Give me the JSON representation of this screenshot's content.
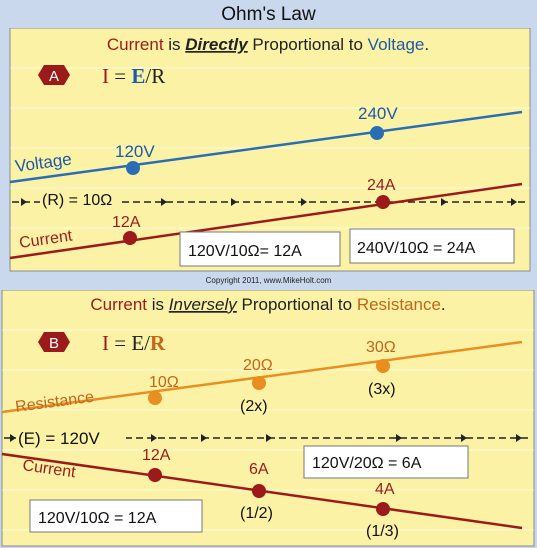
{
  "title": "Ohm's Law",
  "copyright": "Copyright 2011, www.MikeHolt.com",
  "colors": {
    "panel_bg": "#fbf2a6",
    "frame_bg": "#c9d8ec",
    "voltage_line": "#2a6db5",
    "voltage_text": "#1c5aa6",
    "current_line": "#9b1b1b",
    "current_text": "#9b1b1b",
    "resistance_line": "#e98e21",
    "resistance_text": "#c2661a",
    "badge": "#9b1b1b"
  },
  "panel_a": {
    "badge": "A",
    "heading": {
      "part1": "Current",
      "part2": " is ",
      "part3": "Directly",
      "part4": " Proportional to ",
      "part5": "Voltage",
      "part6": "."
    },
    "formula": {
      "i": "I",
      "eq": " = ",
      "e": "E",
      "slash": "/",
      "r": "R"
    },
    "voltage_label": "Voltage",
    "voltage_points": [
      "120V",
      "240V"
    ],
    "constant_label": "(R) = 10Ω",
    "current_label": "Current",
    "current_points": [
      "12A",
      "24A"
    ],
    "calc_left": "120V/10Ω= 12A",
    "calc_right": "240V/10Ω = 24A"
  },
  "panel_b": {
    "badge": "B",
    "heading": {
      "part1": "Current",
      "part2": " is ",
      "part3": "Inversely",
      "part4": " Proportional to ",
      "part5": "Resistance",
      "part6": "."
    },
    "formula": {
      "i": "I",
      "eq": " = ",
      "e": "E",
      "slash": "/",
      "r": "R"
    },
    "resistance_label": "Resistance",
    "resistance_points": [
      "10Ω",
      "20Ω",
      "30Ω"
    ],
    "resistance_multipliers": [
      "(2x)",
      "(3x)"
    ],
    "constant_label": "(E) = 120V",
    "current_label": "Current",
    "current_points": [
      "12A",
      "6A",
      "4A"
    ],
    "current_fractions": [
      "(1/2)",
      "(1/3)"
    ],
    "calc_left": "120V/10Ω = 12A",
    "calc_right": "120V/20Ω = 6A"
  }
}
